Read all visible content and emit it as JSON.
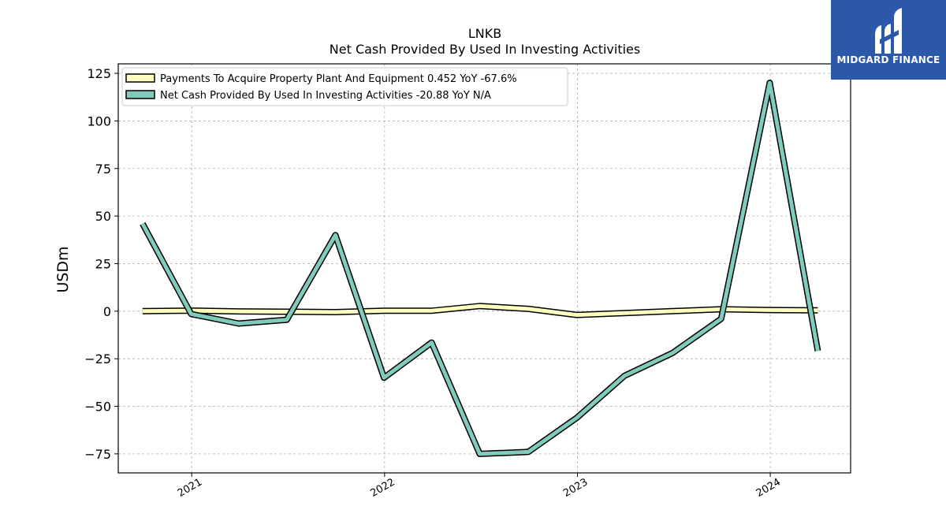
{
  "chart_data": {
    "type": "line",
    "title": "LNKB",
    "subtitle": "Net Cash Provided By Used In Investing Activities",
    "ylabel": "USDm",
    "xlabel": "",
    "ylim": [
      -85,
      130
    ],
    "xlim": [
      "2020-08-15",
      "2024-06-01"
    ],
    "yticks": [
      -75,
      -50,
      -25,
      0,
      25,
      50,
      75,
      100,
      125
    ],
    "ytick_labels": [
      "−75",
      "−50",
      "−25",
      "0",
      "25",
      "50",
      "75",
      "100",
      "125"
    ],
    "xticks": [
      "2021-01-01",
      "2022-01-01",
      "2023-01-01",
      "2024-01-01"
    ],
    "xtick_labels": [
      "2021",
      "2022",
      "2023",
      "2024"
    ],
    "grid": true,
    "legend_position": "top-left",
    "series": [
      {
        "name": "Payments To Acquire Property Plant And Equipment  0.452 YoY -67.6%",
        "color": "#ffffbf",
        "x": [
          "2020-09-30",
          "2020-12-31",
          "2021-03-31",
          "2021-06-30",
          "2021-09-30",
          "2021-12-31",
          "2022-03-31",
          "2022-06-30",
          "2022-09-30",
          "2022-12-31",
          "2023-03-31",
          "2023-06-30",
          "2023-09-30",
          "2023-12-31",
          "2024-03-31"
        ],
        "values": [
          0.0,
          0.3,
          -0.1,
          -0.3,
          -0.5,
          0.2,
          0.2,
          2.7,
          1.2,
          -2.0,
          -1.0,
          0.0,
          1.0,
          0.6,
          0.452
        ]
      },
      {
        "name": "Net Cash Provided By Used In Investing Activities  -20.88 YoY N/A",
        "color": "#80cbbb",
        "x": [
          "2020-09-30",
          "2020-12-31",
          "2021-03-31",
          "2021-06-30",
          "2021-09-30",
          "2021-12-31",
          "2022-03-31",
          "2022-06-30",
          "2022-09-30",
          "2022-12-31",
          "2023-03-31",
          "2023-06-30",
          "2023-09-30",
          "2023-12-31",
          "2024-03-31"
        ],
        "values": [
          46,
          -1.5,
          -6.5,
          -4.5,
          40,
          -35,
          -16.5,
          -75,
          -74,
          -56,
          -34,
          -22,
          -4,
          120,
          -20.88
        ]
      }
    ]
  },
  "logo": {
    "text": "MIDGARD FINANCE"
  }
}
